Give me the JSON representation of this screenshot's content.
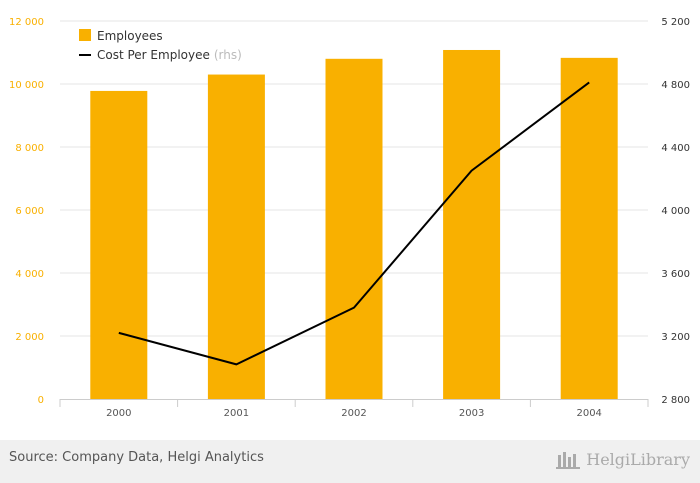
{
  "chart_data": {
    "type": "bar+line",
    "categories": [
      "2000",
      "2001",
      "2002",
      "2003",
      "2004"
    ],
    "series": [
      {
        "name": "Employees",
        "axis": "left",
        "kind": "bar",
        "color": "#f9b000",
        "values": [
          9780,
          10300,
          10800,
          11080,
          10830
        ]
      },
      {
        "name": "Cost Per Employee",
        "axis": "right",
        "kind": "line",
        "color": "#000000",
        "values": [
          3220,
          3020,
          3380,
          4250,
          4810
        ]
      }
    ],
    "left_axis": {
      "ylim": [
        0,
        12000
      ],
      "ticks": [
        "0",
        "2 000",
        "4 000",
        "6 000",
        "8 000",
        "10 000",
        "12 000"
      ],
      "color": "#f9b000"
    },
    "right_axis": {
      "ylim": [
        2800,
        5200
      ],
      "ticks": [
        "2 800",
        "3 200",
        "3 600",
        "4 000",
        "4 400",
        "4 800",
        "5 200"
      ]
    },
    "legend": {
      "placement": "top-left",
      "items": [
        {
          "label": "Employees",
          "suffix": ""
        },
        {
          "label": "Cost Per Employee",
          "suffix": "(rhs)"
        }
      ]
    },
    "grid": true
  },
  "footer": {
    "source": "Source: Company Data, Helgi Analytics",
    "brand": "HelgiLibrary"
  }
}
